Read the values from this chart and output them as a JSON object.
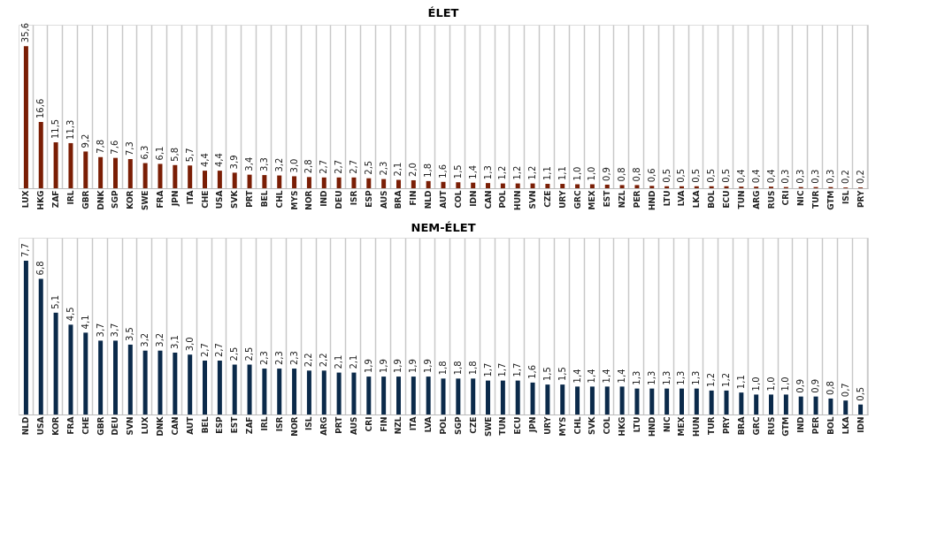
{
  "chart_data": [
    {
      "type": "bar",
      "title": "ÉLET",
      "tick_labels": "x",
      "grid": "x",
      "categories": [
        "LUX",
        "HKG",
        "ZAF",
        "IRL",
        "GBR",
        "DNK",
        "SGP",
        "KOR",
        "SWE",
        "FRA",
        "JPN",
        "ITA",
        "CHE",
        "USA",
        "SVK",
        "PRT",
        "BEL",
        "CHL",
        "MYS",
        "NOR",
        "IND",
        "DEU",
        "ISR",
        "ESP",
        "AUS",
        "BRA",
        "FIN",
        "NLD",
        "AUT",
        "COL",
        "IDN",
        "CAN",
        "POL",
        "HUN",
        "SVN",
        "CZE",
        "URY",
        "GRC",
        "MEX",
        "EST",
        "NZL",
        "PER",
        "HND",
        "LTU",
        "LVA",
        "LKA",
        "BOL",
        "ECU",
        "TUN",
        "ARG",
        "RUS",
        "CRI",
        "NIC",
        "TUR",
        "GTM",
        "ISL",
        "PRY"
      ],
      "series": [
        {
          "color": "#7a1e05",
          "values": [
            35.6,
            16.6,
            11.5,
            11.3,
            9.2,
            7.8,
            7.6,
            7.3,
            6.3,
            6.1,
            5.8,
            5.7,
            4.4,
            4.4,
            3.9,
            3.4,
            3.3,
            3.2,
            3.0,
            2.8,
            2.7,
            2.7,
            2.7,
            2.5,
            2.3,
            2.1,
            2.0,
            1.8,
            1.6,
            1.5,
            1.4,
            1.3,
            1.2,
            1.2,
            1.2,
            1.1,
            1.1,
            1.0,
            1.0,
            0.9,
            0.8,
            0.8,
            0.6,
            0.5,
            0.5,
            0.5,
            0.5,
            0.5,
            0.4,
            0.4,
            0.4,
            0.3,
            0.3,
            0.3,
            0.3,
            0.2,
            0.2
          ],
          "value_labels": [
            "35,6",
            "16,6",
            "11,5",
            "11,3",
            "9,2",
            "7,8",
            "7,6",
            "7,3",
            "6,3",
            "6,1",
            "5,8",
            "5,7",
            "4,4",
            "4,4",
            "3,9",
            "3,4",
            "3,3",
            "3,2",
            "3,0",
            "2,8",
            "2,7",
            "2,7",
            "2,7",
            "2,5",
            "2,3",
            "2,1",
            "2,0",
            "1,8",
            "1,6",
            "1,5",
            "1,4",
            "1,3",
            "1,2",
            "1,2",
            "1,2",
            "1,1",
            "1,1",
            "1,0",
            "1,0",
            "0,9",
            "0,8",
            "0,8",
            "0,6",
            "0,5",
            "0,5",
            "0,5",
            "0,5",
            "0,5",
            "0,4",
            "0,4",
            "0,4",
            "0,3",
            "0,3",
            "0,3",
            "0,3",
            "0,2",
            "0,2"
          ]
        }
      ]
    },
    {
      "type": "bar",
      "title": "NEM-ÉLET",
      "tick_labels": "x",
      "grid": "x",
      "categories": [
        "NLD",
        "USA",
        "KOR",
        "FRA",
        "CHE",
        "GBR",
        "DEU",
        "SVN",
        "LUX",
        "DNK",
        "CAN",
        "AUT",
        "BEL",
        "ESP",
        "EST",
        "ZAF",
        "IRL",
        "ISR",
        "NOR",
        "ISL",
        "ARG",
        "PRT",
        "AUS",
        "CRI",
        "FIN",
        "NZL",
        "ITA",
        "LVA",
        "POL",
        "SGP",
        "CZE",
        "SWE",
        "TUN",
        "ECU",
        "JPN",
        "URY",
        "MYS",
        "CHL",
        "SVK",
        "COL",
        "HKG",
        "LTU",
        "HND",
        "NIC",
        "MEX",
        "HUN",
        "TUR",
        "PRY",
        "BRA",
        "GRC",
        "RUS",
        "GTM",
        "IND",
        "PER",
        "BOL",
        "LKA",
        "IDN"
      ],
      "series": [
        {
          "color": "#0b2a4a",
          "values": [
            7.7,
            6.8,
            5.1,
            4.5,
            4.1,
            3.7,
            3.7,
            3.5,
            3.2,
            3.2,
            3.1,
            3.0,
            2.7,
            2.7,
            2.5,
            2.5,
            2.3,
            2.3,
            2.3,
            2.2,
            2.2,
            2.1,
            2.1,
            1.9,
            1.9,
            1.9,
            1.9,
            1.9,
            1.8,
            1.8,
            1.8,
            1.7,
            1.7,
            1.7,
            1.6,
            1.5,
            1.5,
            1.4,
            1.4,
            1.4,
            1.4,
            1.3,
            1.3,
            1.3,
            1.3,
            1.3,
            1.2,
            1.2,
            1.1,
            1.0,
            1.0,
            1.0,
            0.9,
            0.9,
            0.8,
            0.7,
            0.5
          ],
          "value_labels": [
            "7,7",
            "6,8",
            "5,1",
            "4,5",
            "4,1",
            "3,7",
            "3,7",
            "3,5",
            "3,2",
            "3,2",
            "3,1",
            "3,0",
            "2,7",
            "2,7",
            "2,5",
            "2,5",
            "2,3",
            "2,3",
            "2,3",
            "2,2",
            "2,2",
            "2,1",
            "2,1",
            "1,9",
            "1,9",
            "1,9",
            "1,9",
            "1,9",
            "1,8",
            "1,8",
            "1,8",
            "1,7",
            "1,7",
            "1,7",
            "1,6",
            "1,5",
            "1,5",
            "1,4",
            "1,4",
            "1,4",
            "1,4",
            "1,3",
            "1,3",
            "1,3",
            "1,3",
            "1,3",
            "1,2",
            "1,2",
            "1,1",
            "1,0",
            "1,0",
            "1,0",
            "0,9",
            "0,9",
            "0,8",
            "0,7",
            "0,5"
          ]
        }
      ]
    }
  ]
}
